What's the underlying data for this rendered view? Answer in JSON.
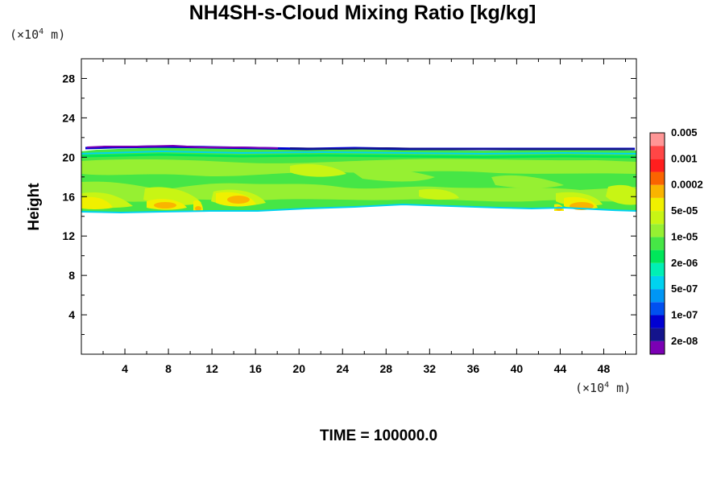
{
  "chart_data": {
    "type": "heatmap",
    "title": "NH4SH-s-Cloud Mixing Ratio [kg/kg]",
    "ylabel": "Height",
    "xlabel": "",
    "x_unit": "(×10⁴ m)",
    "y_unit": "(×10⁴ m)",
    "x_unit_prefix": "(×10",
    "x_unit_exp": "4",
    "x_unit_suffix": " m)",
    "y_unit_prefix": "(×10",
    "y_unit_exp": "4",
    "y_unit_suffix": " m)",
    "footer": "TIME = 100000.0",
    "xlim": [
      0,
      51
    ],
    "ylim": [
      0,
      30
    ],
    "x_ticks": [
      "4",
      "8",
      "12",
      "16",
      "20",
      "24",
      "28",
      "32",
      "36",
      "40",
      "44",
      "48"
    ],
    "y_ticks": [
      "4",
      "8",
      "12",
      "16",
      "20",
      "24",
      "28"
    ],
    "x_tick_values": [
      4,
      8,
      12,
      16,
      20,
      24,
      28,
      32,
      36,
      40,
      44,
      48
    ],
    "y_tick_values": [
      4,
      8,
      12,
      16,
      20,
      24,
      28
    ],
    "cloud_layer": {
      "bottom": 14.5,
      "top": 20.8
    },
    "colorbar": {
      "colors": [
        "#7b00b4",
        "#14148c",
        "#0000d2",
        "#0050f0",
        "#0096f5",
        "#00d2f0",
        "#00f0b4",
        "#00e65a",
        "#46e646",
        "#96f032",
        "#c8f514",
        "#f0f000",
        "#fab400",
        "#fa6400",
        "#ff1e1e",
        "#ff4646",
        "#ff9696"
      ],
      "labels": [
        "2e-08",
        "1e-07",
        "5e-07",
        "2e-06",
        "1e-05",
        "5e-05",
        "0.0002",
        "0.001",
        "0.005"
      ]
    }
  }
}
